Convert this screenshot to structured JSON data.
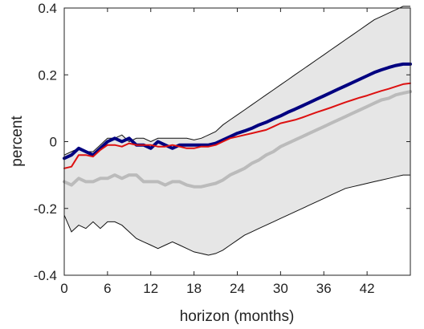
{
  "chart_data": {
    "type": "line",
    "xlabel": "horizon (months)",
    "ylabel": "percent",
    "xlim": [
      0,
      48
    ],
    "ylim": [
      -0.4,
      0.4
    ],
    "xticks": [
      0,
      6,
      12,
      18,
      24,
      30,
      36,
      42
    ],
    "xtick_labels": [
      "0",
      "6",
      "12",
      "18",
      "24",
      "30",
      "36",
      "42"
    ],
    "yticks": [
      -0.4,
      -0.2,
      0,
      0.2,
      0.4
    ],
    "ytick_labels": [
      "-0.4",
      "-0.2",
      "0",
      "0.2",
      "0.4"
    ],
    "grid": false,
    "legend": "none",
    "x": [
      0,
      1,
      2,
      3,
      4,
      5,
      6,
      7,
      8,
      9,
      10,
      11,
      12,
      13,
      14,
      15,
      16,
      17,
      18,
      19,
      20,
      21,
      22,
      23,
      24,
      25,
      26,
      27,
      28,
      29,
      30,
      31,
      32,
      33,
      34,
      35,
      36,
      37,
      38,
      39,
      40,
      41,
      42,
      43,
      44,
      45,
      46,
      47,
      48
    ],
    "band": {
      "upper": [
        -0.04,
        -0.03,
        -0.02,
        -0.03,
        -0.03,
        -0.01,
        0.01,
        0.01,
        0.02,
        0.0,
        0.01,
        0.01,
        0.0,
        0.01,
        0.01,
        0.01,
        0.01,
        0.01,
        0.005,
        0.01,
        0.02,
        0.03,
        0.05,
        0.065,
        0.08,
        0.095,
        0.11,
        0.125,
        0.14,
        0.155,
        0.17,
        0.185,
        0.2,
        0.215,
        0.23,
        0.245,
        0.26,
        0.275,
        0.29,
        0.305,
        0.32,
        0.335,
        0.35,
        0.365,
        0.375,
        0.385,
        0.395,
        0.405,
        0.405
      ],
      "lower": [
        -0.22,
        -0.27,
        -0.25,
        -0.26,
        -0.24,
        -0.26,
        -0.24,
        -0.24,
        -0.25,
        -0.27,
        -0.29,
        -0.3,
        -0.31,
        -0.32,
        -0.31,
        -0.3,
        -0.31,
        -0.32,
        -0.33,
        -0.335,
        -0.34,
        -0.335,
        -0.325,
        -0.31,
        -0.295,
        -0.28,
        -0.27,
        -0.26,
        -0.25,
        -0.24,
        -0.23,
        -0.22,
        -0.21,
        -0.2,
        -0.19,
        -0.18,
        -0.17,
        -0.16,
        -0.15,
        -0.14,
        -0.135,
        -0.13,
        -0.125,
        -0.12,
        -0.115,
        -0.11,
        -0.105,
        -0.1,
        -0.1
      ],
      "fill": "#e6e6e6",
      "edge": "#111111"
    },
    "series": [
      {
        "color": "#bbbbbb",
        "values": [
          -0.12,
          -0.13,
          -0.11,
          -0.12,
          -0.12,
          -0.11,
          -0.11,
          -0.1,
          -0.11,
          -0.1,
          -0.1,
          -0.12,
          -0.12,
          -0.12,
          -0.13,
          -0.12,
          -0.12,
          -0.13,
          -0.135,
          -0.135,
          -0.13,
          -0.125,
          -0.115,
          -0.1,
          -0.09,
          -0.08,
          -0.065,
          -0.055,
          -0.04,
          -0.03,
          -0.015,
          -0.005,
          0.005,
          0.015,
          0.025,
          0.035,
          0.045,
          0.055,
          0.065,
          0.075,
          0.085,
          0.095,
          0.105,
          0.115,
          0.125,
          0.13,
          0.14,
          0.145,
          0.15
        ]
      },
      {
        "color": "#000080",
        "values": [
          -0.05,
          -0.04,
          -0.02,
          -0.03,
          -0.04,
          -0.02,
          0.0,
          0.01,
          0.0,
          0.01,
          -0.01,
          -0.01,
          -0.02,
          0.0,
          -0.01,
          -0.02,
          -0.01,
          -0.01,
          -0.01,
          -0.01,
          -0.01,
          -0.005,
          0.005,
          0.015,
          0.025,
          0.032,
          0.04,
          0.05,
          0.058,
          0.068,
          0.077,
          0.088,
          0.097,
          0.107,
          0.117,
          0.127,
          0.137,
          0.147,
          0.157,
          0.167,
          0.177,
          0.187,
          0.197,
          0.207,
          0.215,
          0.222,
          0.228,
          0.232,
          0.232
        ]
      },
      {
        "color": "#dd1111",
        "values": [
          -0.08,
          -0.075,
          -0.04,
          -0.04,
          -0.045,
          -0.025,
          -0.01,
          -0.01,
          -0.015,
          -0.005,
          -0.01,
          -0.01,
          -0.01,
          -0.015,
          -0.015,
          -0.01,
          -0.015,
          -0.02,
          -0.02,
          -0.015,
          -0.015,
          -0.01,
          0.0,
          0.01,
          0.015,
          0.02,
          0.025,
          0.03,
          0.035,
          0.045,
          0.055,
          0.06,
          0.065,
          0.072,
          0.08,
          0.088,
          0.095,
          0.102,
          0.11,
          0.118,
          0.125,
          0.132,
          0.138,
          0.145,
          0.152,
          0.158,
          0.165,
          0.172,
          0.175
        ]
      }
    ]
  }
}
